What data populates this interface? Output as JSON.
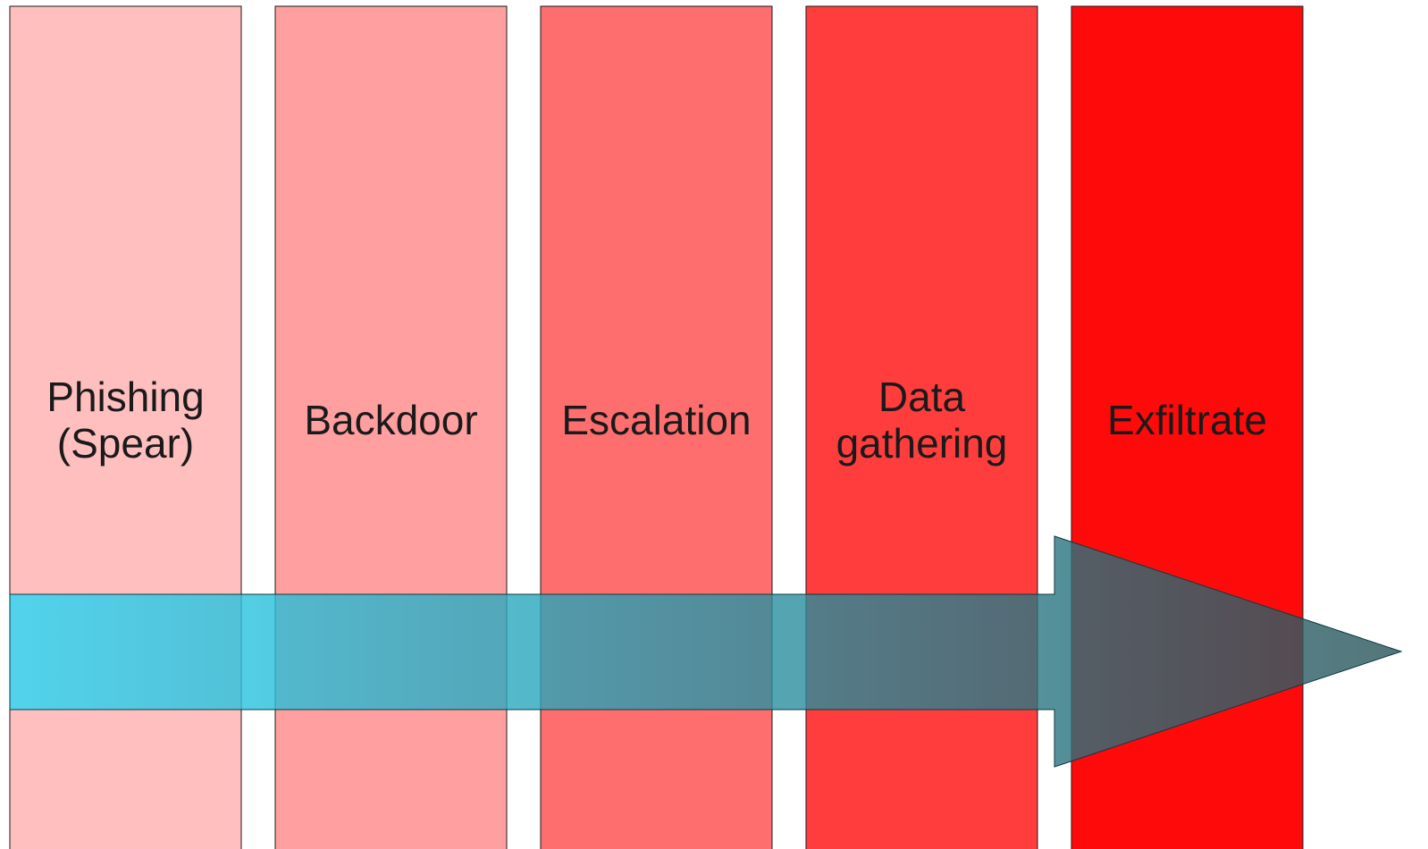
{
  "stages": [
    {
      "id": "phishing",
      "lines": [
        "Phishing",
        "(Spear)"
      ],
      "fill": "#ffbfbf"
    },
    {
      "id": "backdoor",
      "lines": [
        "Backdoor"
      ],
      "fill": "#ff9f9f"
    },
    {
      "id": "escalation",
      "lines": [
        "Escalation"
      ],
      "fill": "#ff6e6e"
    },
    {
      "id": "data-gathering",
      "lines": [
        "Data",
        "gathering"
      ],
      "fill": "#ff3d3d"
    },
    {
      "id": "exfiltrate",
      "lines": [
        "Exfiltrate"
      ],
      "fill": "#ff0a0a"
    }
  ],
  "arrow": {
    "gradient_start": "#27d8f8",
    "gradient_end": "#2a5358"
  }
}
